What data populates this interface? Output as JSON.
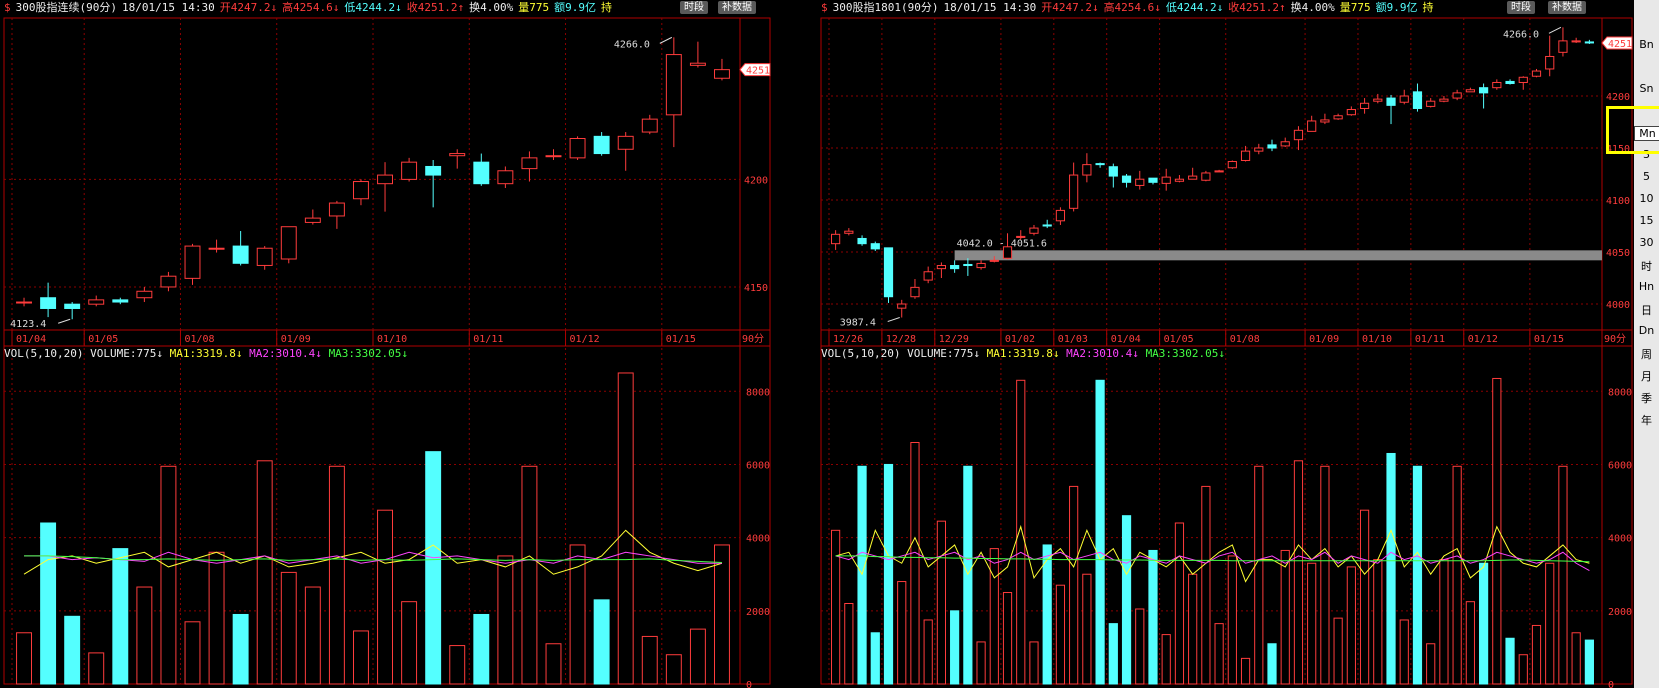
{
  "left_header": {
    "marker": "$",
    "title": "300股指连续(90分)",
    "datetime": "18/01/15 14:30",
    "open": "开4247.2↓",
    "high": "高4254.6↓",
    "low": "低4244.2↓",
    "close": "收4251.2↑",
    "turnover": "换4.00%",
    "volume": "量775",
    "amount": "额9.9亿",
    "hold": "持",
    "btn_period": "时段",
    "btn_data": "补数据"
  },
  "right_header": {
    "marker": "$",
    "title": "300股指1801(90分)",
    "datetime": "18/01/15 14:30",
    "open": "开4247.2↓",
    "high": "高4254.6↓",
    "low": "低4244.2↓",
    "close": "收4251.2↑",
    "turnover": "换4.00%",
    "volume": "量775",
    "amount": "额9.9亿",
    "hold": "持",
    "btn_period": "时段",
    "btn_data": "补数据"
  },
  "vol_header": {
    "label": "VOL(5,10,20)",
    "volume": "VOLUME:775↓",
    "ma1": "MA1:3319.8↓",
    "ma2": "MA2:3010.4↓",
    "ma3": "MA3:3302.05↓"
  },
  "period_label": "90分",
  "sidebar": [
    "Bn",
    "",
    "Sn",
    "",
    "Mn",
    "3",
    "5",
    "10",
    "15",
    "30",
    "时",
    "Hn",
    "日",
    "Dn",
    "周",
    "月",
    "季",
    "年"
  ],
  "colors": {
    "up": "#ff3c3c",
    "down": "#54ffff",
    "ma1": "#ffff33",
    "ma2": "#ff44ff",
    "ma3": "#44ff44",
    "grid": "#8b0000"
  },
  "chart_data": [
    {
      "type": "candlestick",
      "name": "300股指连续(90分)",
      "ylim": [
        4130,
        4275
      ],
      "y_ticks": [
        4150,
        4200
      ],
      "last_price_tag": "4251",
      "max_label": "4266.0",
      "min_label": "4123.4",
      "date_labels": [
        "01/04",
        "01/05",
        "01/08",
        "01/09",
        "01/10",
        "01/11",
        "01/12",
        "01/15"
      ],
      "candles": [
        [
          4143,
          4143,
          4141,
          4145
        ],
        [
          4145,
          4140,
          4136,
          4152
        ],
        [
          4142,
          4140,
          4135,
          4143
        ],
        [
          4142,
          4144,
          4141,
          4146
        ],
        [
          4144,
          4143,
          4142,
          4145
        ],
        [
          4145,
          4148,
          4143,
          4150
        ],
        [
          4150,
          4155,
          4148,
          4157
        ],
        [
          4154,
          4169,
          4151,
          4170
        ],
        [
          4168,
          4168,
          4166,
          4172
        ],
        [
          4169,
          4161,
          4160,
          4176
        ],
        [
          4160,
          4168,
          4158,
          4169
        ],
        [
          4163,
          4178,
          4161,
          4178
        ],
        [
          4180,
          4182,
          4179,
          4186
        ],
        [
          4183,
          4189,
          4177,
          4190
        ],
        [
          4191,
          4199,
          4188,
          4200
        ],
        [
          4198,
          4202,
          4185,
          4208
        ],
        [
          4200,
          4208,
          4199,
          4210
        ],
        [
          4206,
          4202,
          4187,
          4209
        ],
        [
          4211,
          4212,
          4205,
          4214
        ],
        [
          4208,
          4198,
          4197,
          4212
        ],
        [
          4198,
          4204,
          4196,
          4206
        ],
        [
          4205,
          4210,
          4199,
          4213
        ],
        [
          4211,
          4211,
          4209,
          4214
        ],
        [
          4210,
          4219,
          4209,
          4220
        ],
        [
          4220,
          4212,
          4211,
          4222
        ],
        [
          4214,
          4220,
          4204,
          4222
        ],
        [
          4222,
          4228,
          4221,
          4230
        ],
        [
          4230,
          4258,
          4215,
          4266
        ],
        [
          4253,
          4254,
          4252,
          4264
        ],
        [
          4247,
          4251,
          4246,
          4256
        ]
      ],
      "volumes": [
        1400,
        4400,
        1850,
        850,
        3700,
        2650,
        5950,
        1700,
        3600,
        1900,
        6100,
        3050,
        2650,
        5950,
        1450,
        4750,
        2250,
        6350,
        1050,
        1900,
        3500,
        5950,
        1100,
        3800,
        2300,
        8500,
        1300,
        800,
        1500,
        3800
      ],
      "vol_ylim": [
        0,
        8800
      ],
      "ma1": [
        3000,
        3400,
        3500,
        3300,
        3450,
        3600,
        3200,
        3400,
        3600,
        3300,
        3500,
        3200,
        3300,
        3450,
        3600,
        3300,
        3400,
        3800,
        3300,
        3400,
        3200,
        3500,
        3000,
        3200,
        3500,
        4200,
        3600,
        3300,
        3100,
        3300
      ],
      "ma2": [
        3500,
        3500,
        3400,
        3450,
        3400,
        3350,
        3600,
        3400,
        3300,
        3400,
        3500,
        3300,
        3400,
        3500,
        3300,
        3400,
        3600,
        3450,
        3500,
        3400,
        3300,
        3400,
        3300,
        3500,
        3400,
        3600,
        3500,
        3400,
        3300,
        3300
      ],
      "ma3": [
        3500,
        3500,
        3480,
        3450,
        3400,
        3400,
        3420,
        3400,
        3380,
        3400,
        3420,
        3380,
        3400,
        3420,
        3380,
        3400,
        3380,
        3400,
        3420,
        3400,
        3380,
        3400,
        3380,
        3400,
        3400,
        3400,
        3420,
        3380,
        3350,
        3320
      ]
    },
    {
      "type": "candlestick",
      "name": "300股指1801(90分)",
      "ylim": [
        3975,
        4275
      ],
      "y_ticks": [
        4000,
        4050,
        4100,
        4150,
        4200
      ],
      "last_price_tag": "4251",
      "max_label": "4266.0",
      "min_label": "3987.4",
      "range_label": "4042.0 - 4051.6",
      "date_labels": [
        "12/26",
        "12/28",
        "12/29",
        "01/02",
        "01/03",
        "01/04",
        "01/05",
        "01/08",
        "01/09",
        "01/10",
        "01/11",
        "01/12",
        "01/15"
      ],
      "candles": [
        [
          4058,
          4067,
          4052,
          4071
        ],
        [
          4068,
          4070,
          4066,
          4073
        ],
        [
          4063,
          4058,
          4056,
          4066
        ],
        [
          4058,
          4053,
          4051,
          4060
        ],
        [
          4054,
          4007,
          4001,
          4054
        ],
        [
          3996,
          4000,
          3987,
          4004
        ],
        [
          4007,
          4016,
          4005,
          4024
        ],
        [
          4023,
          4031,
          4020,
          4036
        ],
        [
          4034,
          4037,
          4025,
          4040
        ],
        [
          4037,
          4034,
          4030,
          4042
        ],
        [
          4038,
          4037,
          4027,
          4044
        ],
        [
          4035,
          4039,
          4033,
          4042
        ],
        [
          4041,
          4042,
          4040,
          4046
        ],
        [
          4044,
          4055,
          4043,
          4068
        ],
        [
          4064,
          4065,
          4062,
          4071
        ],
        [
          4068,
          4073,
          4066,
          4076
        ],
        [
          4076,
          4075,
          4073,
          4081
        ],
        [
          4080,
          4090,
          4076,
          4093
        ],
        [
          4092,
          4124,
          4089,
          4136
        ],
        [
          4124,
          4134,
          4117,
          4145
        ],
        [
          4135,
          4134,
          4131,
          4136
        ],
        [
          4132,
          4123,
          4112,
          4135
        ],
        [
          4123,
          4117,
          4112,
          4125
        ],
        [
          4114,
          4120,
          4110,
          4128
        ],
        [
          4121,
          4117,
          4115,
          4121
        ],
        [
          4116,
          4122,
          4109,
          4130
        ],
        [
          4118,
          4120,
          4117,
          4124
        ],
        [
          4120,
          4123,
          4120,
          4131
        ],
        [
          4119,
          4126,
          4118,
          4128
        ],
        [
          4127,
          4128,
          4127,
          4129
        ],
        [
          4131,
          4137,
          4130,
          4138
        ],
        [
          4138,
          4147,
          4137,
          4152
        ],
        [
          4147,
          4150,
          4144,
          4154
        ],
        [
          4153,
          4150,
          4147,
          4158
        ],
        [
          4152,
          4156,
          4151,
          4160
        ],
        [
          4158,
          4167,
          4148,
          4171
        ],
        [
          4166,
          4176,
          4166,
          4181
        ],
        [
          4175,
          4177,
          4173,
          4183
        ],
        [
          4178,
          4181,
          4177,
          4183
        ],
        [
          4182,
          4187,
          4181,
          4190
        ],
        [
          4188,
          4193,
          4183,
          4198
        ],
        [
          4195,
          4197,
          4193,
          4202
        ],
        [
          4198,
          4191,
          4173,
          4201
        ],
        [
          4194,
          4200,
          4192,
          4206
        ],
        [
          4204,
          4188,
          4185,
          4212
        ],
        [
          4190,
          4195,
          4189,
          4198
        ],
        [
          4195,
          4197,
          4194,
          4200
        ],
        [
          4198,
          4203,
          4196,
          4206
        ],
        [
          4204,
          4206,
          4204,
          4208
        ],
        [
          4208,
          4203,
          4188,
          4212
        ],
        [
          4208,
          4213,
          4206,
          4216
        ],
        [
          4214,
          4212,
          4211,
          4216
        ],
        [
          4213,
          4218,
          4206,
          4219
        ],
        [
          4219,
          4224,
          4218,
          4226
        ],
        [
          4226,
          4238,
          4219,
          4258
        ],
        [
          4242,
          4253,
          4238,
          4266
        ],
        [
          4252,
          4253,
          4251,
          4256
        ],
        [
          4252,
          4251,
          4250,
          4254
        ]
      ],
      "volumes": [
        4200,
        2200,
        5950,
        1400,
        6000,
        2800,
        6600,
        1750,
        4450,
        2000,
        5950,
        1150,
        3700,
        2500,
        8300,
        1150,
        3800,
        2700,
        5400,
        3000,
        8300,
        1650,
        4600,
        2050,
        3650,
        1350,
        4400,
        3000,
        5400,
        1650,
        3500,
        700,
        5950,
        1100,
        3650,
        6100,
        3300,
        5950,
        1800,
        3200,
        4750,
        3400,
        6300,
        1750,
        5950,
        1100,
        3400,
        5950,
        2250,
        3300,
        8350,
        1250,
        800,
        1600,
        3300,
        5950,
        1400,
        1200
      ],
      "vol_ylim": [
        0,
        8800
      ],
      "ma1": [
        3500,
        3600,
        3000,
        4200,
        3500,
        3300,
        4000,
        3200,
        3500,
        3800,
        3000,
        3600,
        2900,
        3200,
        4300,
        2900,
        3400,
        3700,
        3200,
        4200,
        3400,
        3700,
        3000,
        3600,
        3400,
        3200,
        3500,
        3000,
        3300,
        3600,
        3800,
        2800,
        3400,
        3400,
        3200,
        3800,
        3400,
        3700,
        3200,
        3500,
        3000,
        3400,
        4200,
        3200,
        3600,
        3000,
        3500,
        3700,
        2900,
        3200,
        4300,
        3600,
        3300,
        3200,
        3500,
        3800,
        3400,
        3300
      ],
      "ma2": [
        3500,
        3400,
        3600,
        3500,
        3400,
        3500,
        3600,
        3400,
        3500,
        3600,
        3400,
        3500,
        3300,
        3400,
        3600,
        3400,
        3500,
        3600,
        3400,
        3500,
        3600,
        3400,
        3300,
        3500,
        3400,
        3300,
        3500,
        3400,
        3300,
        3500,
        3600,
        3300,
        3400,
        3500,
        3300,
        3500,
        3400,
        3600,
        3300,
        3500,
        3400,
        3300,
        3600,
        3400,
        3500,
        3300,
        3400,
        3500,
        3300,
        3400,
        3600,
        3500,
        3400,
        3300,
        3400,
        3600,
        3300,
        3100
      ],
      "ma3": [
        3500,
        3500,
        3500,
        3480,
        3480,
        3460,
        3460,
        3450,
        3450,
        3440,
        3440,
        3430,
        3430,
        3420,
        3420,
        3410,
        3410,
        3400,
        3400,
        3400,
        3400,
        3390,
        3390,
        3390,
        3380,
        3380,
        3380,
        3380,
        3380,
        3380,
        3370,
        3370,
        3370,
        3370,
        3370,
        3370,
        3370,
        3370,
        3370,
        3370,
        3370,
        3370,
        3370,
        3370,
        3370,
        3370,
        3370,
        3370,
        3370,
        3370,
        3380,
        3390,
        3390,
        3380,
        3370,
        3360,
        3350,
        3340
      ]
    }
  ]
}
